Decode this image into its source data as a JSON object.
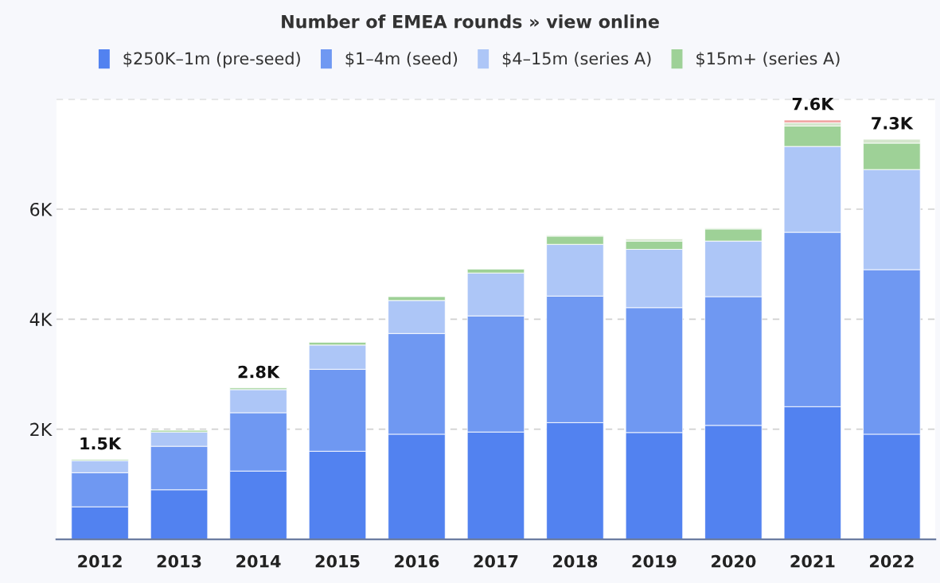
{
  "chart_data": {
    "type": "bar",
    "title": "Number of EMEA rounds » view online",
    "stacked": true,
    "categories": [
      "2012",
      "2013",
      "2014",
      "2015",
      "2016",
      "2017",
      "2018",
      "2019",
      "2020",
      "2021",
      "2022"
    ],
    "series": [
      {
        "name": "$250K–1m (pre-seed)",
        "color": "#5282f0",
        "values": [
          590,
          900,
          1240,
          1600,
          1910,
          1950,
          2120,
          1940,
          2070,
          2410,
          1910
        ]
      },
      {
        "name": "$1–4m (seed)",
        "color": "#6f98f2",
        "values": [
          620,
          790,
          1060,
          1490,
          1830,
          2110,
          2300,
          2270,
          2340,
          3170,
          2990
        ]
      },
      {
        "name": "$4–15m (series A)",
        "color": "#adc6f7",
        "values": [
          220,
          260,
          420,
          440,
          600,
          780,
          940,
          1060,
          1010,
          1560,
          1820
        ]
      },
      {
        "name": "$15m+ (series A)",
        "color": "#9ed197",
        "values": [
          20,
          30,
          30,
          50,
          70,
          70,
          150,
          150,
          220,
          370,
          480
        ]
      },
      {
        "color": "#d4e6cc",
        "values": [
          null,
          null,
          null,
          null,
          null,
          null,
          20,
          40,
          20,
          60,
          70
        ]
      },
      {
        "color": "#f0a3a0",
        "values": [
          null,
          null,
          null,
          null,
          null,
          null,
          null,
          null,
          null,
          50,
          null
        ]
      }
    ],
    "totals": [
      "1.5K",
      null,
      "2.8K",
      null,
      null,
      null,
      null,
      null,
      null,
      "7.6K",
      "7.3K"
    ],
    "ylim": [
      0,
      8000
    ],
    "yticks": [
      {
        "value": 2000,
        "label": "2K"
      },
      {
        "value": 4000,
        "label": "4K"
      },
      {
        "value": 6000,
        "label": "6K"
      },
      {
        "value": 8000,
        "label": null
      }
    ],
    "grid": "y",
    "legend": "top"
  }
}
